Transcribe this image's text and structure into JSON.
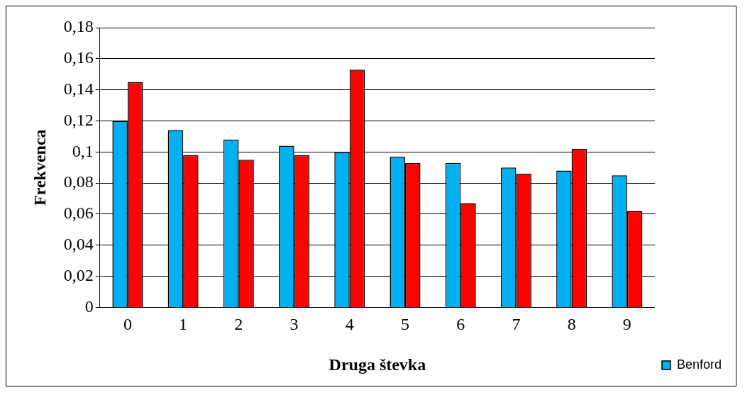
{
  "chart_data": {
    "type": "bar",
    "xlabel": "Druga števka",
    "ylabel": "Frekvenca",
    "categories": [
      "0",
      "1",
      "2",
      "3",
      "4",
      "5",
      "6",
      "7",
      "8",
      "9"
    ],
    "series": [
      {
        "name": "Benford",
        "color": "#00b0f0",
        "values": [
          0.12,
          0.114,
          0.108,
          0.104,
          0.1,
          0.097,
          0.093,
          0.09,
          0.088,
          0.085
        ]
      },
      {
        "color": "#ff0000",
        "values": [
          0.145,
          0.098,
          0.095,
          0.098,
          0.153,
          0.093,
          0.067,
          0.086,
          0.102,
          0.062
        ]
      }
    ],
    "ylim": [
      0,
      0.18
    ],
    "yticks": [
      0,
      {
        "value": 0.02,
        "label": "0,02"
      },
      {
        "value": 0.04,
        "label": "0,04"
      },
      {
        "value": 0.06,
        "label": "0,06"
      },
      {
        "value": 0.08,
        "label": "0,08"
      },
      {
        "value": 0.1,
        "label": "0,1"
      },
      {
        "value": 0.12,
        "label": "0,12"
      },
      {
        "value": 0.14,
        "label": "0,14"
      },
      {
        "value": 0.16,
        "label": "0,16"
      },
      {
        "value": 0.18,
        "label": "0,18"
      }
    ],
    "grid": "y",
    "legend": "bottom right"
  }
}
